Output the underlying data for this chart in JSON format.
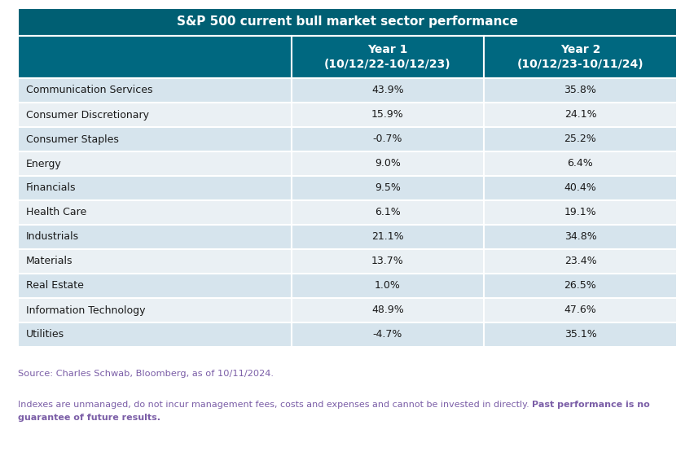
{
  "title": "S&P 500 current bull market sector performance",
  "col2_header": "Year 1\n(10/12/22-10/12/23)",
  "col3_header": "Year 2\n(10/12/23-10/11/24)",
  "sectors": [
    "Communication Services",
    "Consumer Discretionary",
    "Consumer Staples",
    "Energy",
    "Financials",
    "Health Care",
    "Industrials",
    "Materials",
    "Real Estate",
    "Information Technology",
    "Utilities"
  ],
  "year1": [
    "43.9%",
    "15.9%",
    "-0.7%",
    "9.0%",
    "9.5%",
    "6.1%",
    "21.1%",
    "13.7%",
    "1.0%",
    "48.9%",
    "-4.7%"
  ],
  "year2": [
    "35.8%",
    "24.1%",
    "25.2%",
    "6.4%",
    "40.4%",
    "19.1%",
    "34.8%",
    "23.4%",
    "26.5%",
    "47.6%",
    "35.1%"
  ],
  "title_bg": "#005f73",
  "header_bg": "#006880",
  "row_even_bg": "#d6e4ed",
  "row_odd_bg": "#eaf0f4",
  "title_fg": "#ffffff",
  "header_fg": "#ffffff",
  "row_fg": "#1a1a1a",
  "source_text": "Source: Charles Schwab, Bloomberg, as of 10/11/2024.",
  "source_color": "#7b5ea7",
  "footnote_normal": "Indexes are unmanaged, do not incur management fees, costs and expenses and cannot be invested in directly. ",
  "footnote_bold": "Past performance is no\nguarantee of future results.",
  "footnote_color": "#7b5ea7",
  "border_color": "#ffffff"
}
